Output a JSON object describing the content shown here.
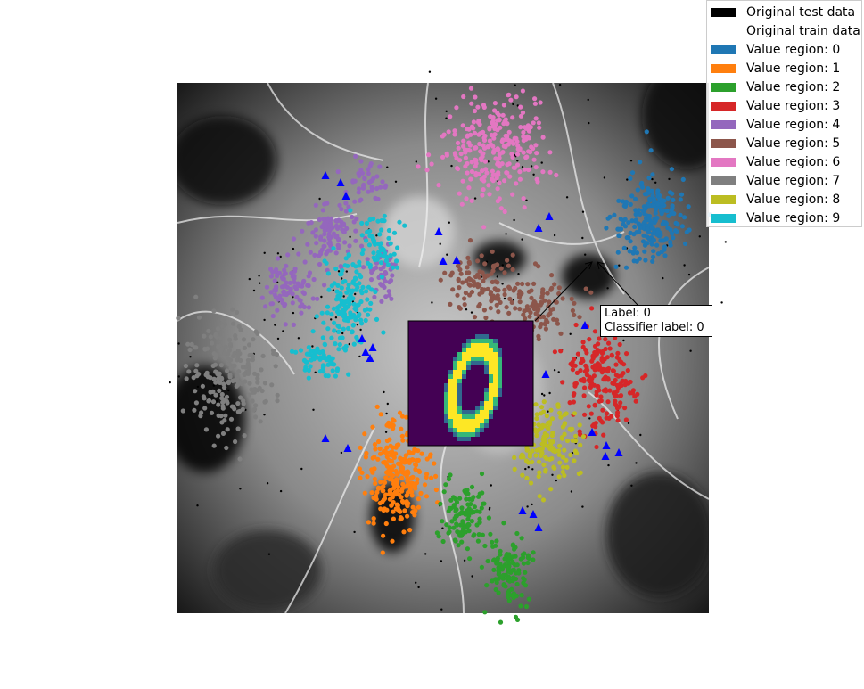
{
  "chart_data": {
    "type": "scatter",
    "title": "",
    "xlabel": "",
    "ylabel": "",
    "grid": false,
    "axes_visible": false,
    "legend_position": "top-right",
    "background": "grayscale decision-boundary map",
    "legend": [
      {
        "label": "Original test data",
        "color": "#000000"
      },
      {
        "label": "Original train data",
        "color": "#ffffff"
      },
      {
        "label": "Value region: 0",
        "color": "#1f77b4"
      },
      {
        "label": "Value region: 1",
        "color": "#ff7f0e"
      },
      {
        "label": "Value region: 2",
        "color": "#2ca02c"
      },
      {
        "label": "Value region: 3",
        "color": "#d62728"
      },
      {
        "label": "Value region: 4",
        "color": "#9467bd"
      },
      {
        "label": "Value region: 5",
        "color": "#8c564b"
      },
      {
        "label": "Value region: 6",
        "color": "#e377c2"
      },
      {
        "label": "Value region: 7",
        "color": "#7f7f7f"
      },
      {
        "label": "Value region: 8",
        "color": "#bcbd22"
      },
      {
        "label": "Value region: 9",
        "color": "#17becf"
      }
    ],
    "annotation": {
      "line1": "Label: 0",
      "line2": "Classifier label: 0",
      "inset_image": "digit-0",
      "inset_colormap": "viridis"
    },
    "misclassified_marker": {
      "shape": "triangle",
      "color": "#0000ff"
    }
  }
}
